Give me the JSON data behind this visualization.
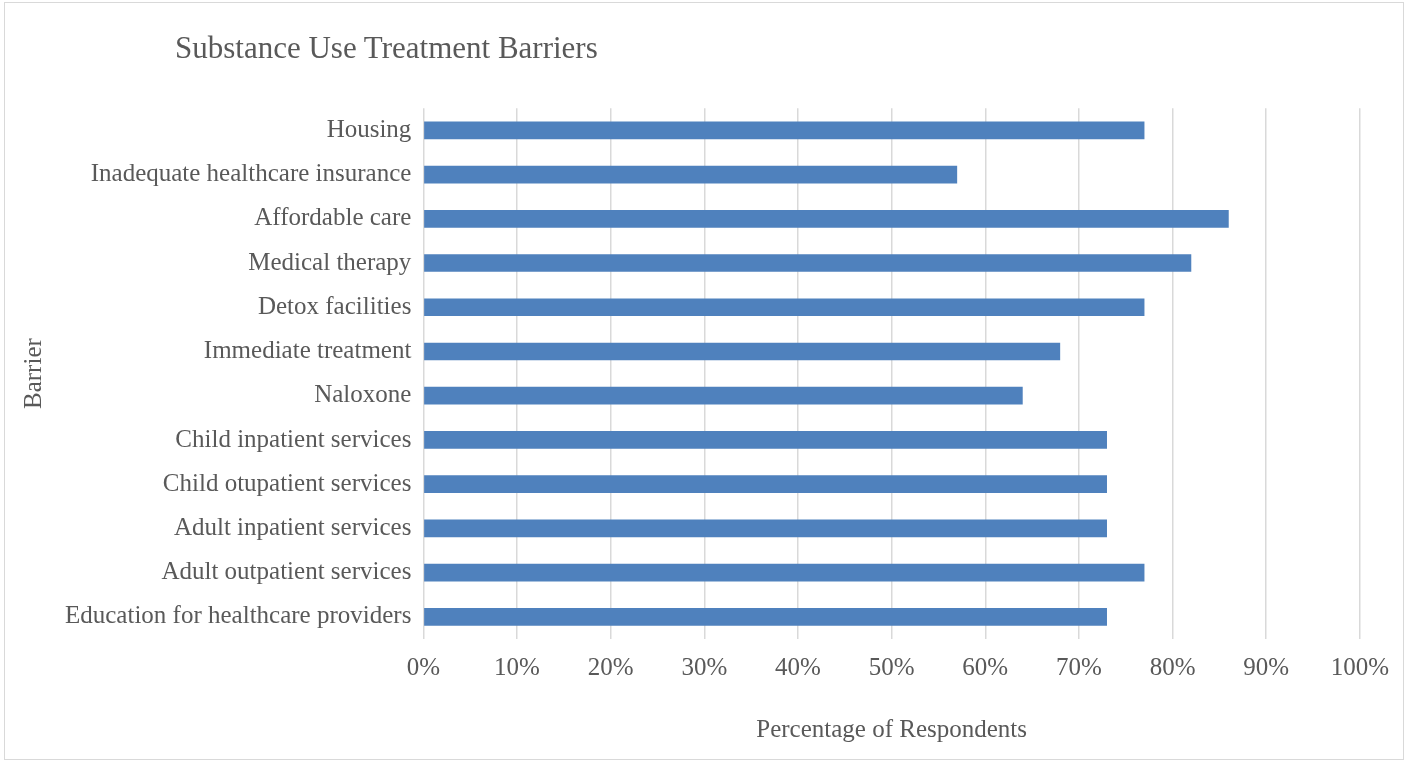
{
  "chart_data": {
    "type": "bar",
    "orientation": "horizontal",
    "title": "Substance Use Treatment Barriers",
    "xlabel": "Percentage of Respondents",
    "ylabel": "Barrier",
    "categories": [
      "Housing",
      "Inadequate healthcare insurance",
      "Affordable care",
      "Medical therapy",
      "Detox facilities",
      "Immediate treatment",
      "Naloxone",
      "Child inpatient services",
      "Child otupatient services",
      "Adult inpatient services",
      "Adult outpatient services",
      "Education for healthcare providers"
    ],
    "values": [
      77,
      57,
      86,
      82,
      77,
      68,
      64,
      73,
      73,
      73,
      77,
      73
    ],
    "color": "#4f81bd",
    "xlim": [
      0,
      100
    ],
    "xticks": [
      {
        "value": 0,
        "label": "0%"
      },
      {
        "value": 10,
        "label": "10%"
      },
      {
        "value": 20,
        "label": "20%"
      },
      {
        "value": 30,
        "label": "30%"
      },
      {
        "value": 40,
        "label": "40%"
      },
      {
        "value": 50,
        "label": "50%"
      },
      {
        "value": 60,
        "label": "60%"
      },
      {
        "value": 70,
        "label": "70%"
      },
      {
        "value": 80,
        "label": "80%"
      },
      {
        "value": 90,
        "label": "90%"
      },
      {
        "value": 100,
        "label": "100%"
      }
    ],
    "grid": "x",
    "legend": false
  }
}
